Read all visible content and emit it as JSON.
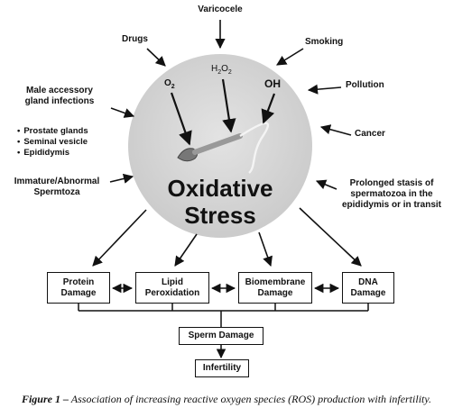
{
  "causes": {
    "varicocele": "Varicocele",
    "drugs": "Drugs",
    "smoking": "Smoking",
    "pollution": "Pollution",
    "cancer": "Cancer",
    "male_accessory_line1": "Male accessory",
    "male_accessory_line2": "gland infections",
    "infections_list": [
      "Prostate glands",
      "Seminal vesicle",
      "Epididymis"
    ],
    "immature_line1": "Immature/Abnormal",
    "immature_line2": "Spermtoza",
    "stasis_line1": "Prolonged stasis of",
    "stasis_line2": "spermatozoa in the",
    "stasis_line3": "epididymis or in transit"
  },
  "radicals": {
    "o2": "O2",
    "h2o2": "H2O2",
    "oh": "OH"
  },
  "center": {
    "line1": "Oxidative",
    "line2": "Stress"
  },
  "effects": [
    {
      "line1": "Protein",
      "line2": "Damage"
    },
    {
      "line1": "Lipid",
      "line2": "Peroxidation"
    },
    {
      "line1": "Biomembrane",
      "line2": "Damage"
    },
    {
      "line1": "DNA",
      "line2": "Damage"
    }
  ],
  "outcome": {
    "sperm_damage": "Sperm Damage",
    "infertility": "Infertility"
  },
  "caption": {
    "label": "Figure 1 –",
    "text": " Association of increasing reactive oxygen species (ROS) production with infertility."
  }
}
